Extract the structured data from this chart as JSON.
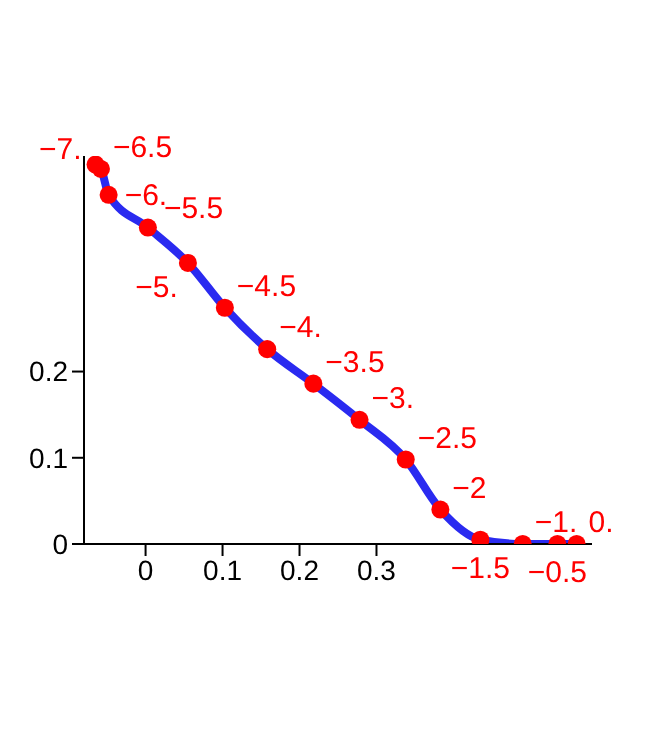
{
  "chart_data": {
    "type": "line",
    "x": [
      -0.065,
      -0.058,
      -0.048,
      0.003,
      0.055,
      0.103,
      0.158,
      0.218,
      0.278,
      0.338,
      0.383,
      0.435,
      0.49,
      0.535,
      0.56
    ],
    "series": [
      {
        "color": "#2a2af0",
        "marker": "none",
        "values": [
          0.44,
          0.435,
          0.405,
          0.367,
          0.326,
          0.274,
          0.226,
          0.186,
          0.144,
          0.098,
          0.04,
          0.005,
          0,
          0,
          0
        ]
      },
      {
        "type": "scatter",
        "color": "#ff0000",
        "marker": "circle",
        "values": [
          0.44,
          0.435,
          0.405,
          0.367,
          0.326,
          0.274,
          0.226,
          0.186,
          0.144,
          0.098,
          0.04,
          0.005,
          0,
          0,
          0
        ]
      }
    ],
    "annotations": [
      {
        "text": "−7.",
        "x": -0.065,
        "y": 0.44
      },
      {
        "text": "−6.5",
        "x": -0.058,
        "y": 0.435
      },
      {
        "text": "−6.",
        "x": -0.048,
        "y": 0.405
      },
      {
        "text": "−5.5",
        "x": 0.003,
        "y": 0.367
      },
      {
        "text": "−5.",
        "x": 0.055,
        "y": 0.326
      },
      {
        "text": "−4.5",
        "x": 0.103,
        "y": 0.274
      },
      {
        "text": "−4.",
        "x": 0.158,
        "y": 0.226
      },
      {
        "text": "−3.5",
        "x": 0.218,
        "y": 0.186
      },
      {
        "text": "−3.",
        "x": 0.278,
        "y": 0.144
      },
      {
        "text": "−2.5",
        "x": 0.338,
        "y": 0.098
      },
      {
        "text": "−2",
        "x": 0.383,
        "y": 0.04
      },
      {
        "text": "−1.5",
        "x": 0.435,
        "y": 0.005
      },
      {
        "text": "−1.",
        "x": 0.49,
        "y": 0
      },
      {
        "text": "−0.5",
        "x": 0.535,
        "y": 0
      },
      {
        "text": "0.",
        "x": 0.56,
        "y": 0
      }
    ],
    "xlim": [
      -0.08,
      0.58
    ],
    "xticks": [
      0,
      0.1,
      0.2,
      0.3
    ],
    "ylim": [
      0,
      0.45
    ],
    "yticks": [
      0,
      0.1,
      0.2
    ],
    "grid": false
  }
}
